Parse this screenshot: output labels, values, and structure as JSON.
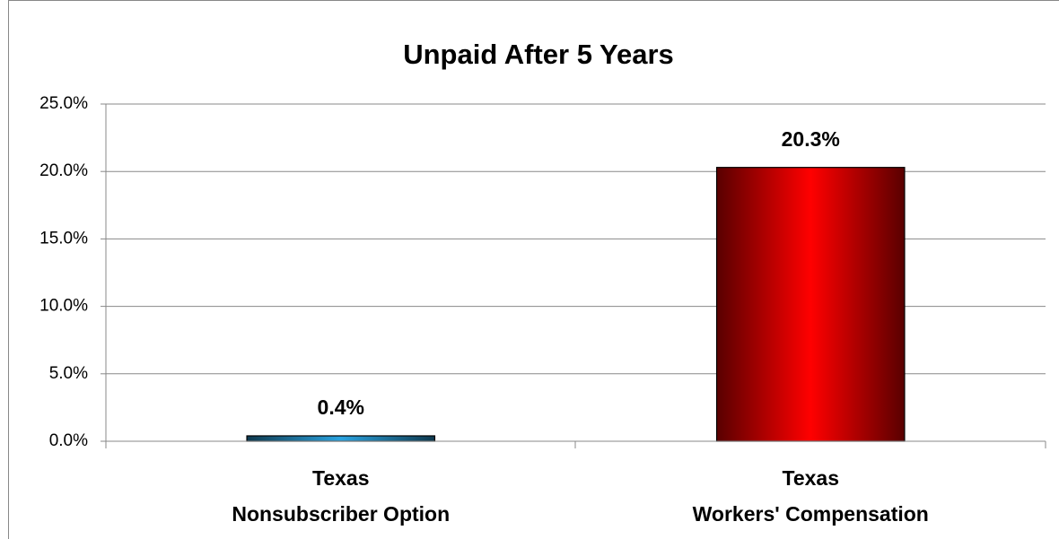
{
  "chart_data": {
    "type": "bar",
    "title": "Unpaid After 5 Years",
    "categories": [
      [
        "Texas",
        "Nonsubscriber Option"
      ],
      [
        "Texas",
        "Workers' Compensation"
      ]
    ],
    "values": [
      0.4,
      20.3
    ],
    "value_labels": [
      "0.4%",
      "20.3%"
    ],
    "colors": [
      "#2aa3e0",
      "#ff0000"
    ],
    "ylim": [
      0,
      25
    ],
    "yticks": [
      {
        "value": 0,
        "label": "0.0%"
      },
      {
        "value": 5,
        "label": "5.0%"
      },
      {
        "value": 10,
        "label": "10.0%"
      },
      {
        "value": 15,
        "label": "15.0%"
      },
      {
        "value": 20,
        "label": "20.0%"
      },
      {
        "value": 25,
        "label": "25.0%"
      }
    ],
    "grid": true
  }
}
